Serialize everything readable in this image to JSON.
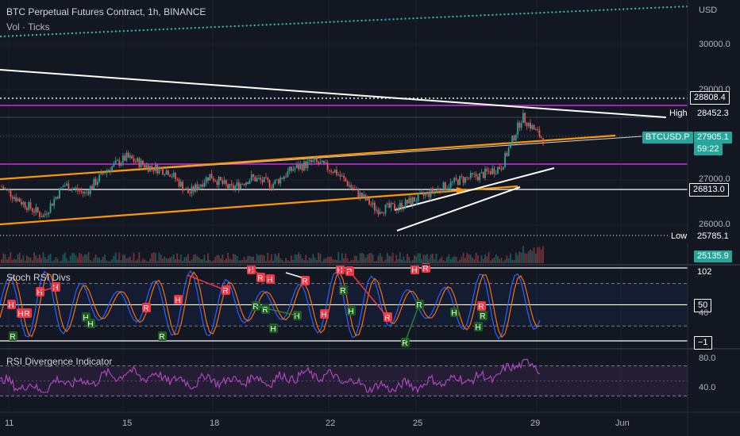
{
  "header": {
    "title": "BTC Perpetual Futures Contract, 1h, BINANCE",
    "volume_label": "Vol · Ticks"
  },
  "currency": "USD",
  "price_axis": [
    "30000.0",
    "29000.0",
    "27000.0",
    "26000.0"
  ],
  "tags": {
    "level_28808": "28808.4",
    "high_label": "High",
    "high_value": "28452.3",
    "symbol": "BTCUSD.P",
    "last_price": "27905.1",
    "countdown": "59:22",
    "level_26813": "26813.0",
    "low_label": "Low",
    "low_value": "25785.1",
    "volume_value": "25135.9"
  },
  "stoch_pane": {
    "title": "Stoch RSI Divs",
    "axis_top": "102",
    "axis_mid": "50",
    "axis_40": "40",
    "axis_bottom": "−1"
  },
  "rsi_pane": {
    "title": "RSI Divergence Indicator",
    "axis_high": "80.0",
    "axis_low": "40.0"
  },
  "dates": [
    "11",
    "15",
    "18",
    "22",
    "25",
    "29",
    "Jun"
  ],
  "colors": {
    "background": "#131722",
    "up": "#26a69a",
    "down": "#ef5350",
    "purple_level": "#9c27b0",
    "orange_trend": "#ff9800",
    "white_trend": "#ffffff",
    "teal_dotted": "#26c6b0",
    "rsi_line": "#ab47bc",
    "stoch_k": "#2962ff",
    "stoch_d": "#ff6d00"
  },
  "chart_data": {
    "type": "candlestick",
    "symbol": "BTCUSD.P",
    "timeframe": "1h",
    "x": [
      "11",
      "15",
      "18",
      "22",
      "25",
      "29",
      "Jun"
    ],
    "price_levels": [
      30000,
      29000,
      27000,
      26000
    ],
    "high": 28452.3,
    "low": 25785.1,
    "last": 27905.1,
    "horizontal_levels": [
      28808.4,
      26813.0
    ],
    "approx_close_path": [
      26850,
      26500,
      26200,
      26900,
      26700,
      27200,
      27500,
      27300,
      27200,
      26700,
      27100,
      26800,
      27050,
      26900,
      27250,
      27400,
      27200,
      26750,
      26350,
      26400,
      26600,
      26800,
      27000,
      27100,
      27300,
      28400,
      27900
    ],
    "stoch_rsi_range": [
      -1,
      102
    ],
    "rsi_range": [
      40,
      80
    ]
  }
}
